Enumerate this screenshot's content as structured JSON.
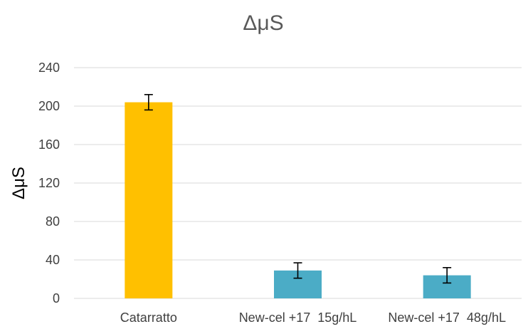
{
  "chart_data": {
    "type": "bar",
    "title": "ΔμS",
    "xlabel": "",
    "ylabel": "ΔμS",
    "ylim": [
      0,
      240
    ],
    "yticks": [
      0,
      40,
      80,
      120,
      160,
      200,
      240
    ],
    "grid": true,
    "legend": false,
    "categories": [
      "Catarratto",
      "New-cel +17  15g/hL",
      "New-cel +17  48g/hL"
    ],
    "values": [
      204,
      29,
      24
    ],
    "error": [
      8,
      8,
      8
    ],
    "bar_colors": [
      "#FFC000",
      "#4BACC6",
      "#4BACC6"
    ],
    "colors": {
      "grid": "#D9D9D9",
      "error_bar": "#000000",
      "title": "#595959",
      "tick_text": "#404040"
    }
  }
}
